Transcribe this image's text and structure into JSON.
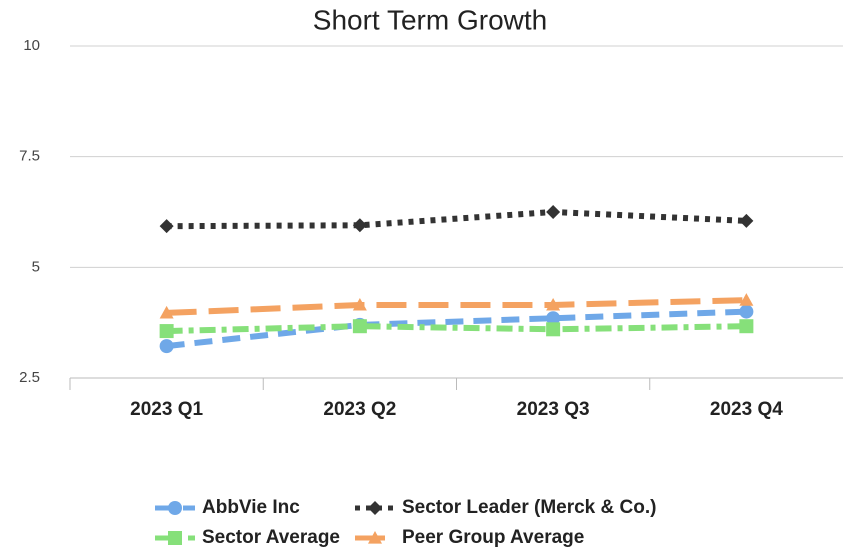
{
  "chart_data": {
    "type": "line",
    "title": "Short Term Growth",
    "categories": [
      "2023 Q1",
      "2023 Q2",
      "2023 Q3",
      "2023 Q4"
    ],
    "series": [
      {
        "name": "AbbVie Inc",
        "color": "#6fa8e8",
        "marker": "circle",
        "line_style": "dashed",
        "values": [
          3.22,
          3.7,
          3.85,
          4.0
        ]
      },
      {
        "name": "Sector Leader (Merck & Co.)",
        "color": "#333333",
        "marker": "diamond",
        "line_style": "dotted",
        "values": [
          5.93,
          5.95,
          6.25,
          6.05
        ]
      },
      {
        "name": "Sector Average",
        "color": "#86e07a",
        "marker": "square",
        "line_style": "dashdot",
        "values": [
          3.56,
          3.67,
          3.6,
          3.67
        ]
      },
      {
        "name": "Peer Group Average",
        "color": "#f4a261",
        "marker": "triangle",
        "line_style": "longdash",
        "values": [
          3.97,
          4.15,
          4.15,
          4.26
        ]
      }
    ],
    "ylim": [
      2.5,
      10
    ],
    "yticks": [
      2.5,
      5,
      7.5,
      10
    ],
    "grid": true,
    "legend": "bottom"
  }
}
